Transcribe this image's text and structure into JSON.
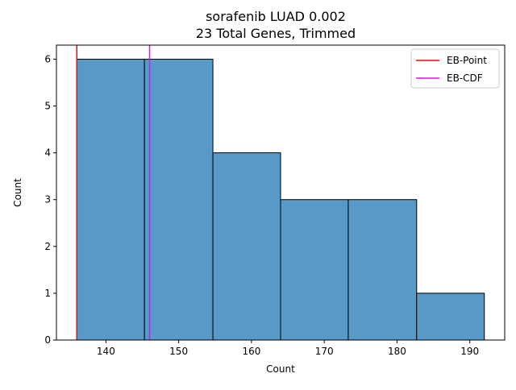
{
  "chart_data": {
    "type": "bar",
    "title": "sorafenib LUAD 0.002",
    "subtitle": "23 Total Genes, Trimmed",
    "xlabel": "Count",
    "ylabel": "Count",
    "xlim": [
      133.2,
      194.8
    ],
    "ylim": [
      0,
      6.3
    ],
    "xticks": [
      140,
      150,
      160,
      170,
      180,
      190
    ],
    "yticks": [
      0,
      1,
      2,
      3,
      4,
      5,
      6
    ],
    "grid": false,
    "legend_position": "top-right",
    "bar_color": "#5799c7",
    "bins": [
      {
        "x0": 136.0,
        "x1": 145.3,
        "count": 6
      },
      {
        "x0": 145.3,
        "x1": 154.7,
        "count": 6
      },
      {
        "x0": 154.7,
        "x1": 164.0,
        "count": 4
      },
      {
        "x0": 164.0,
        "x1": 173.3,
        "count": 3
      },
      {
        "x0": 173.3,
        "x1": 182.7,
        "count": 3
      },
      {
        "x0": 182.7,
        "x1": 192.0,
        "count": 1
      }
    ],
    "vlines": [
      {
        "name": "EB-Point",
        "x": 136.0,
        "color": "#ff0000"
      },
      {
        "name": "EB-CDF",
        "x": 146.0,
        "color": "#ff00ff"
      }
    ]
  }
}
